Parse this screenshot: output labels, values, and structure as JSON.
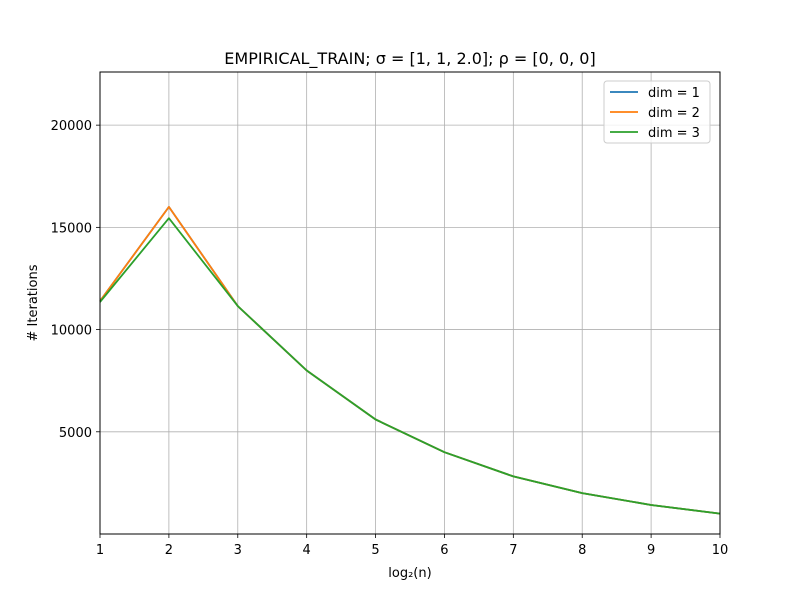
{
  "chart_data": {
    "type": "line",
    "title": "EMPIRICAL_TRAIN;  σ = [1, 1, 2.0];  ρ = [0, 0, 0]",
    "xlabel": "log₂(n)",
    "ylabel": "# Iterations",
    "x": [
      1,
      2,
      3,
      4,
      5,
      6,
      7,
      8,
      9,
      10
    ],
    "xlim": [
      1,
      10
    ],
    "ylim": [
      0,
      22600
    ],
    "xticks": [
      1,
      2,
      3,
      4,
      5,
      6,
      7,
      8,
      9,
      10
    ],
    "yticks": [
      5000,
      10000,
      15000,
      20000
    ],
    "grid": true,
    "legend_position": "top-right",
    "series": [
      {
        "name": "dim = 1",
        "color": "#1f77b4",
        "values": [
          11400,
          16000,
          11150,
          8000,
          5600,
          4000,
          2820,
          2000,
          1420,
          1000
        ]
      },
      {
        "name": "dim = 2",
        "color": "#ff7f0e",
        "values": [
          11400,
          16000,
          11150,
          8000,
          5600,
          4000,
          2820,
          2000,
          1420,
          1000
        ]
      },
      {
        "name": "dim = 3",
        "color": "#2ca02c",
        "values": [
          11350,
          15450,
          11150,
          8000,
          5600,
          4000,
          2820,
          2000,
          1420,
          1000
        ]
      }
    ]
  }
}
